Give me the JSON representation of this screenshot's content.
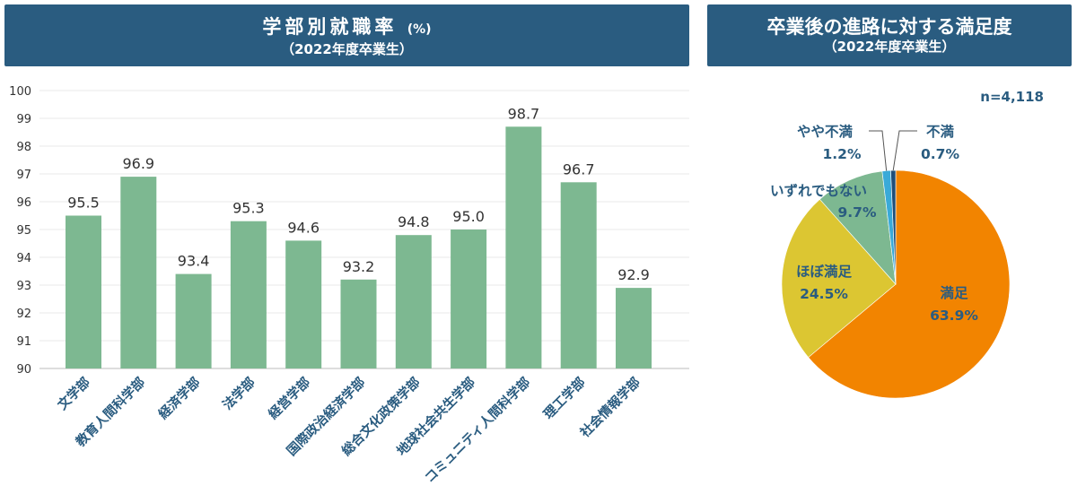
{
  "left_banner": {
    "title": "学部別就職率",
    "unit": "(%)",
    "subtitle": "（2022年度卒業生）"
  },
  "right_banner": {
    "title": "卒業後の進路に対する満足度",
    "subtitle": "（2022年度卒業生）"
  },
  "colors": {
    "banner": "#2a5c80",
    "bar": "#7db891",
    "label_blue": "#2a5c80",
    "satisfied": "#f28400",
    "mostly": "#dcc632",
    "neutral": "#7db891",
    "somewhat_dissatisfied": "#3aaad8",
    "dissatisfied": "#1f4e79"
  },
  "chart_data": [
    {
      "type": "bar",
      "title": "学部別就職率 (%)",
      "subtitle": "（2022年度卒業生）",
      "categories": [
        "文学部",
        "教育人間科学部",
        "経済学部",
        "法学部",
        "経営学部",
        "国際政治経済学部",
        "総合文化政策学部",
        "地球社会共生学部",
        "コミュニティ人間科学部",
        "理工学部",
        "社会情報学部"
      ],
      "values": [
        95.5,
        96.9,
        93.4,
        95.3,
        94.6,
        93.2,
        94.8,
        95.0,
        98.7,
        96.7,
        92.9
      ],
      "value_labels": [
        "95.5",
        "96.9",
        "93.4",
        "95.3",
        "94.6",
        "93.2",
        "94.8",
        "95.0",
        "98.7",
        "96.7",
        "92.9"
      ],
      "ylim": [
        90,
        100
      ],
      "yticks": [
        "90",
        "91",
        "92",
        "93",
        "94",
        "95",
        "96",
        "97",
        "98",
        "99",
        "100"
      ],
      "grid": true
    },
    {
      "type": "pie",
      "title": "卒業後の進路に対する満足度",
      "subtitle": "（2022年度卒業生）",
      "n_label": "n=4,118",
      "slices": [
        {
          "name": "満足",
          "value": 63.9,
          "pct": "63.9%"
        },
        {
          "name": "ほぼ満足",
          "value": 24.5,
          "pct": "24.5%"
        },
        {
          "name": "いずれでもない",
          "value": 9.7,
          "pct": "9.7%"
        },
        {
          "name": "やや不満",
          "value": 1.2,
          "pct": "1.2%"
        },
        {
          "name": "不満",
          "value": 0.7,
          "pct": "0.7%"
        }
      ]
    }
  ]
}
